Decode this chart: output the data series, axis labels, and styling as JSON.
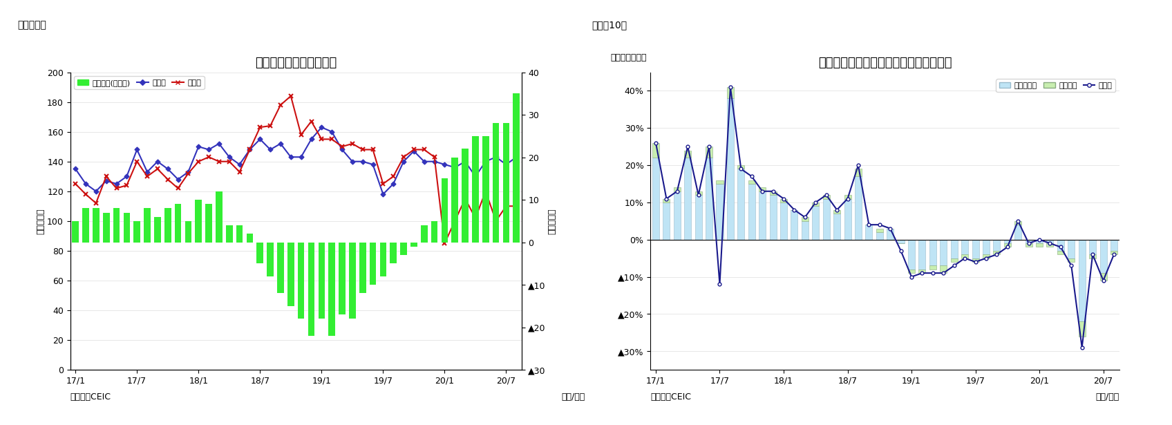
{
  "chart1": {
    "title": "インドネシア　貿易収支",
    "fig_label": "（図表９）",
    "ylabel_left": "（億ドル）",
    "ylabel_right": "（億ドル）",
    "xlabel": "（年/月）",
    "source": "（資料）CEIC",
    "bar_color": "#33EE33",
    "export_color": "#3333BB",
    "import_color": "#CC1111",
    "legend_labels": [
      "貿易収支(右目盛)",
      "輸出額",
      "輸入額"
    ],
    "xtick_positions": [
      0,
      6,
      12,
      18,
      24,
      30,
      36,
      42
    ],
    "xtick_labels": [
      "17/1",
      "17/7",
      "18/1",
      "18/7",
      "19/1",
      "19/7",
      "20/1",
      "20/7"
    ],
    "trade_balance": [
      5,
      8,
      8,
      7,
      8,
      7,
      5,
      8,
      6,
      8,
      9,
      5,
      10,
      9,
      12,
      4,
      4,
      2,
      -5,
      -8,
      -12,
      -15,
      -18,
      -22,
      -18,
      -22,
      -17,
      -18,
      -12,
      -10,
      -8,
      -5,
      -3,
      -1,
      4,
      5,
      15,
      20,
      22,
      25,
      25,
      28,
      28,
      35
    ],
    "export": [
      135,
      125,
      120,
      127,
      125,
      130,
      148,
      133,
      140,
      135,
      128,
      133,
      150,
      148,
      152,
      143,
      138,
      148,
      155,
      148,
      152,
      143,
      143,
      155,
      163,
      160,
      148,
      140,
      140,
      138,
      118,
      125,
      140,
      147,
      140,
      140,
      138,
      136,
      140,
      130,
      140,
      143,
      138,
      143
    ],
    "import_val": [
      125,
      118,
      112,
      130,
      122,
      124,
      140,
      130,
      135,
      128,
      122,
      132,
      140,
      143,
      140,
      140,
      133,
      148,
      163,
      164,
      178,
      184,
      158,
      167,
      155,
      155,
      150,
      152,
      148,
      148,
      125,
      130,
      143,
      148,
      148,
      143,
      85,
      100,
      115,
      102,
      120,
      100,
      110,
      110
    ]
  },
  "chart2": {
    "title": "インドネシア　輸出の伸び率（品目別）",
    "fig_label": "（図表10）",
    "ylabel_left": "（前年同月比）",
    "xlabel": "（年/月）",
    "source": "（資料）CEIC",
    "bar_nonoil_color": "#BFE4F5",
    "bar_oil_color": "#C8EEB0",
    "bar_nonoil_edge": "#99BBCC",
    "bar_oil_edge": "#88AA80",
    "line_color": "#1A1A8C",
    "legend_labels": [
      "非石油ガス",
      "石油ガス",
      "輸出額"
    ],
    "xtick_positions": [
      0,
      6,
      12,
      18,
      24,
      30,
      36,
      42
    ],
    "xtick_labels": [
      "17/1",
      "17/7",
      "18/1",
      "18/7",
      "19/1",
      "19/7",
      "20/1",
      "20/7"
    ],
    "nonoil_gas": [
      0.22,
      0.1,
      0.13,
      0.22,
      0.12,
      0.22,
      0.15,
      0.38,
      0.19,
      0.15,
      0.13,
      0.12,
      0.1,
      0.08,
      0.05,
      0.09,
      0.11,
      0.07,
      0.11,
      0.17,
      0.04,
      0.02,
      0.03,
      -0.01,
      -0.08,
      -0.08,
      -0.07,
      -0.07,
      -0.05,
      -0.04,
      -0.05,
      -0.04,
      -0.03,
      -0.01,
      0.04,
      -0.01,
      -0.01,
      -0.01,
      -0.03,
      -0.05,
      -0.22,
      -0.04,
      -0.09,
      -0.03
    ],
    "oil_gas": [
      0.04,
      0.01,
      0.01,
      0.02,
      0.01,
      0.03,
      0.01,
      0.03,
      0.01,
      0.01,
      0.01,
      0.01,
      0.01,
      0.0,
      0.01,
      0.01,
      0.01,
      0.01,
      0.01,
      0.02,
      0.0,
      0.01,
      0.0,
      0.0,
      -0.01,
      -0.01,
      -0.01,
      -0.02,
      -0.01,
      -0.01,
      -0.01,
      -0.01,
      -0.01,
      -0.01,
      0.01,
      -0.01,
      -0.01,
      -0.01,
      -0.01,
      -0.01,
      -0.04,
      -0.01,
      -0.02,
      -0.01
    ],
    "export_line": [
      0.26,
      0.11,
      0.13,
      0.25,
      0.12,
      0.25,
      -0.12,
      0.41,
      0.19,
      0.17,
      0.13,
      0.13,
      0.11,
      0.08,
      0.06,
      0.1,
      0.12,
      0.08,
      0.11,
      0.2,
      0.04,
      0.04,
      0.03,
      -0.03,
      -0.1,
      -0.09,
      -0.09,
      -0.09,
      -0.07,
      -0.05,
      -0.06,
      -0.05,
      -0.04,
      -0.02,
      0.05,
      -0.01,
      0.0,
      -0.01,
      -0.02,
      -0.07,
      -0.29,
      -0.04,
      -0.11,
      -0.04
    ]
  }
}
